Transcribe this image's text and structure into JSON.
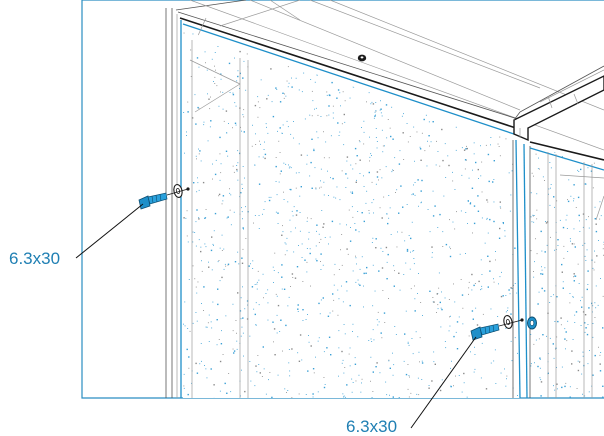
{
  "callouts": [
    {
      "id": "screw-left",
      "label": "6.3x30"
    },
    {
      "id": "screw-bottom",
      "label": "6.3x30"
    }
  ],
  "colors": {
    "accent": "#1e8fc9",
    "label": "#1f7fb3",
    "outline": "#1a1a1a",
    "speckle": "#3aa0d6"
  },
  "icons": [
    "screw-icon",
    "washer-icon",
    "nut-icon"
  ]
}
